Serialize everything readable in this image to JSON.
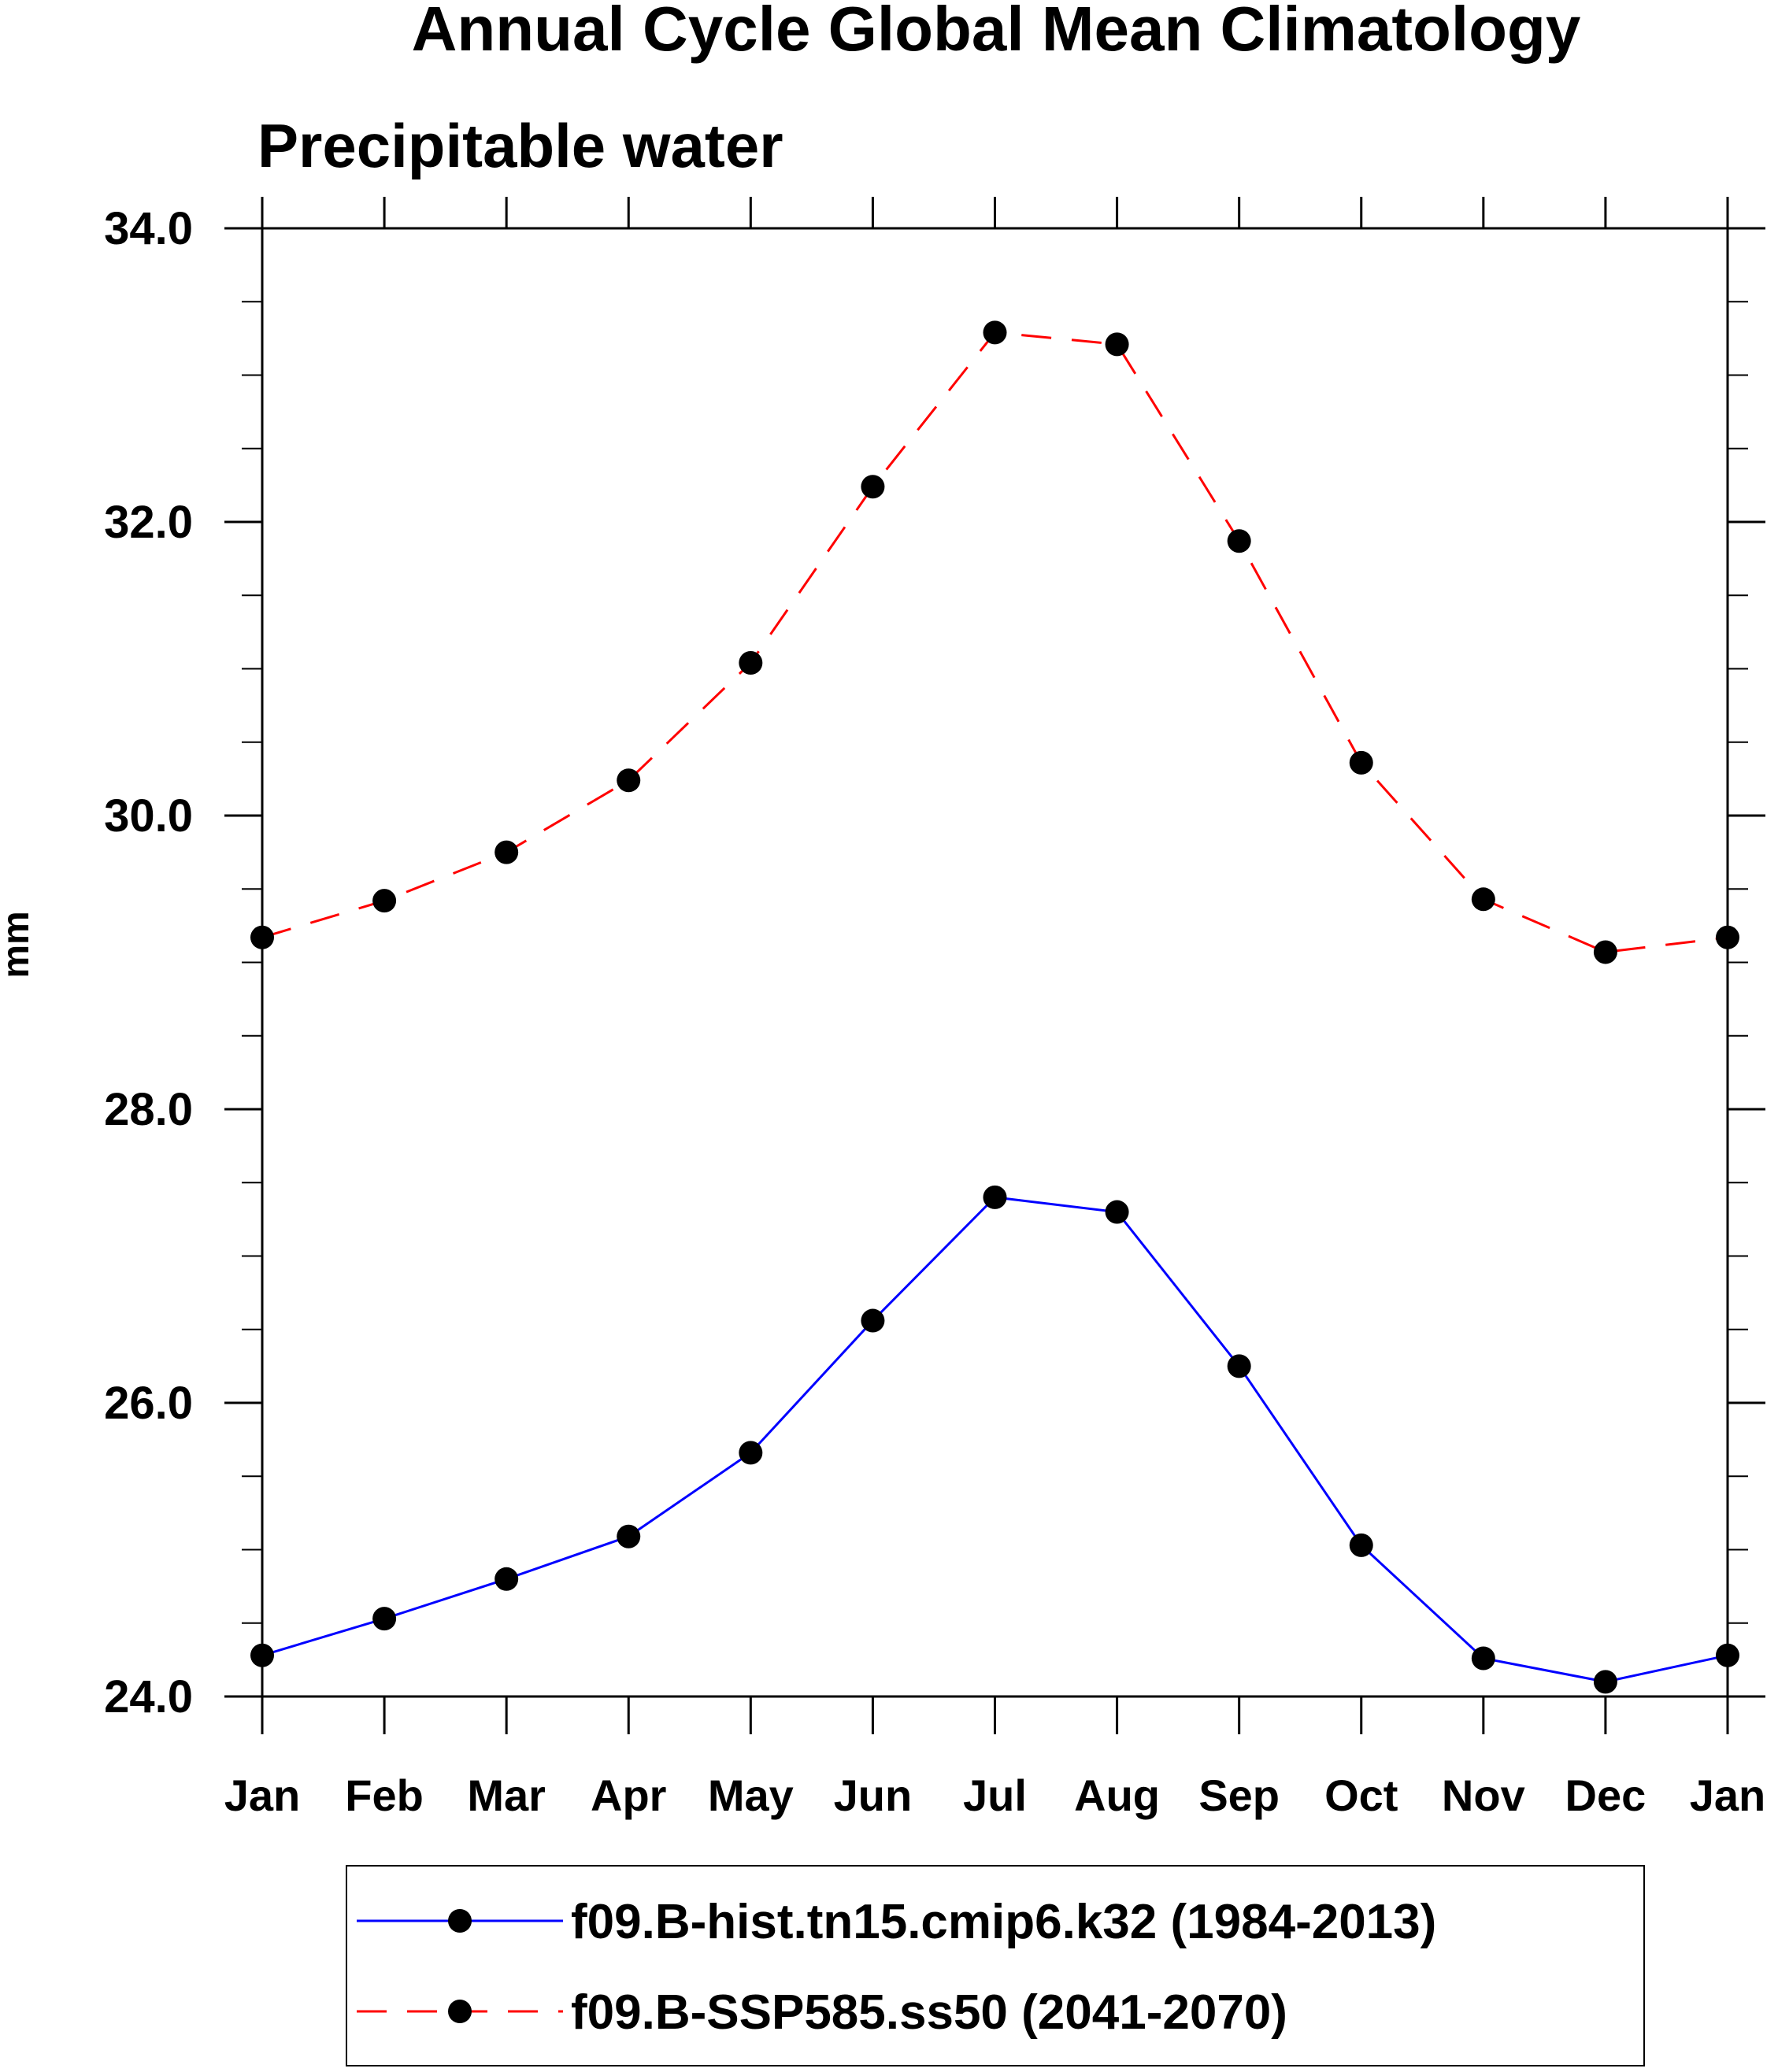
{
  "chart_data": {
    "type": "line",
    "title": "Annual Cycle Global Mean Climatology",
    "subtitle": "Precipitable water",
    "xlabel": "",
    "ylabel": "mm",
    "categories": [
      "Jan",
      "Feb",
      "Mar",
      "Apr",
      "May",
      "Jun",
      "Jul",
      "Aug",
      "Sep",
      "Oct",
      "Nov",
      "Dec",
      "Jan"
    ],
    "ylim": [
      24.0,
      34.0
    ],
    "yticks": [
      "24.0",
      "26.0",
      "28.0",
      "30.0",
      "32.0",
      "34.0"
    ],
    "ytick_values": [
      24,
      26,
      28,
      30,
      32,
      34
    ],
    "yminor_step": 0.5,
    "grid": false,
    "legend_position": "bottom",
    "series": [
      {
        "name": "f09.B-hist.tn15.cmip6.k32 (1984-2013)",
        "color": "#0000ff",
        "line_style": "solid",
        "marker_color": "#000000",
        "values": [
          24.28,
          24.53,
          24.8,
          25.09,
          25.66,
          26.56,
          27.4,
          27.3,
          26.25,
          25.03,
          24.26,
          24.1,
          24.28
        ]
      },
      {
        "name": "f09.B-SSP585.ss50 (2041-2070)",
        "color": "#ff0000",
        "line_style": "dashed",
        "marker_color": "#000000",
        "values": [
          29.17,
          29.42,
          29.75,
          30.24,
          31.04,
          32.24,
          33.29,
          33.21,
          31.87,
          30.36,
          29.43,
          29.07,
          29.17
        ]
      }
    ]
  }
}
